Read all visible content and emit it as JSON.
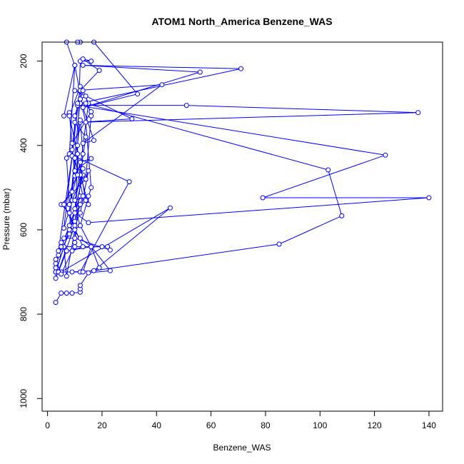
{
  "chart_data": {
    "type": "line",
    "title": "ATOM1 North_America Benzene_WAS",
    "xlabel": "Benzene_WAS",
    "ylabel": "Pressure (mbar)",
    "xlim": [
      -2,
      145
    ],
    "ylim": [
      1030,
      155
    ],
    "y_reversed": true,
    "grid": false,
    "x_ticks": [
      0,
      20,
      40,
      60,
      80,
      100,
      120,
      140
    ],
    "y_ticks": [
      200,
      400,
      600,
      800,
      1000
    ],
    "colors": {
      "series": "#0000ff",
      "axes": "#000000",
      "background": "#ffffff"
    },
    "markers": "open-circle",
    "series": [
      {
        "values": [
          [
            3,
            772
          ],
          [
            5,
            750
          ],
          [
            7,
            750
          ],
          [
            9,
            750
          ],
          [
            12,
            748
          ],
          [
            12,
            740
          ],
          [
            12,
            732
          ],
          [
            15,
            702
          ],
          [
            23,
            697
          ],
          [
            16,
            640
          ],
          [
            20,
            640
          ],
          [
            10,
            640
          ],
          [
            6,
            640
          ],
          [
            3,
            700
          ],
          [
            5,
            700
          ],
          [
            9,
            700
          ],
          [
            17,
            697
          ],
          [
            45,
            548
          ],
          [
            5,
            700
          ],
          [
            12,
            700
          ],
          [
            30,
            486
          ],
          [
            8,
            420
          ],
          [
            10,
            210
          ],
          [
            7,
            155
          ],
          [
            12,
            155
          ],
          [
            11,
            155
          ],
          [
            17,
            155
          ],
          [
            33,
            278
          ],
          [
            13,
            310
          ],
          [
            10,
            210
          ],
          [
            6,
            330
          ],
          [
            8,
            322
          ],
          [
            10,
            472
          ],
          [
            14,
            480
          ],
          [
            5,
            540
          ],
          [
            8,
            560
          ],
          [
            10,
            600
          ],
          [
            7,
            710
          ],
          [
            6,
            640
          ],
          [
            3,
            700
          ],
          [
            12,
            520
          ],
          [
            4,
            660
          ],
          [
            8,
            610
          ],
          [
            13,
            470
          ],
          [
            9,
            530
          ],
          [
            6,
            596
          ],
          [
            12,
            260
          ],
          [
            8,
            330
          ],
          [
            11,
            420
          ],
          [
            14,
            530
          ],
          [
            10,
            560
          ],
          [
            15,
            583
          ],
          [
            140,
            524
          ],
          [
            79,
            524
          ],
          [
            124,
            423
          ],
          [
            11,
            305
          ],
          [
            51,
            305
          ],
          [
            136,
            322
          ],
          [
            12,
            345
          ],
          [
            31,
            337
          ],
          [
            10,
            270
          ],
          [
            42,
            256
          ],
          [
            13,
            395
          ],
          [
            17,
            388
          ],
          [
            13,
            310
          ],
          [
            56,
            226
          ],
          [
            13,
            210
          ],
          [
            71,
            218
          ],
          [
            12,
            300
          ],
          [
            15,
            302
          ],
          [
            103,
            458
          ],
          [
            108,
            567
          ],
          [
            85,
            634
          ],
          [
            17,
            697
          ],
          [
            19,
            690
          ],
          [
            16,
            640
          ],
          [
            22,
            640
          ],
          [
            23,
            648
          ],
          [
            10,
            620
          ],
          [
            6,
            620
          ],
          [
            12,
            590
          ],
          [
            16,
            500
          ],
          [
            14,
            345
          ],
          [
            12,
            290
          ],
          [
            8,
            560
          ],
          [
            9,
            510
          ],
          [
            12,
            340
          ],
          [
            13,
            420
          ],
          [
            10,
            630
          ],
          [
            12,
            200
          ],
          [
            16,
            200
          ],
          [
            13,
            195
          ],
          [
            19,
            222
          ],
          [
            12,
            270
          ],
          [
            11,
            300
          ],
          [
            9,
            410
          ],
          [
            7,
            430
          ],
          [
            8,
            540
          ],
          [
            12,
            440
          ],
          [
            16,
            431
          ],
          [
            10,
            460
          ],
          [
            13,
            455
          ],
          [
            10,
            530
          ],
          [
            15,
            520
          ],
          [
            15,
            540
          ],
          [
            12,
            470
          ],
          [
            14,
            380
          ],
          [
            10,
            345
          ],
          [
            9,
            425
          ],
          [
            4,
            650
          ],
          [
            5,
            640
          ],
          [
            3,
            690
          ],
          [
            4,
            700
          ],
          [
            13,
            700
          ],
          [
            16,
            640
          ],
          [
            12,
            620
          ],
          [
            8,
            590
          ],
          [
            10,
            580
          ],
          [
            12,
            540
          ],
          [
            13,
            520
          ],
          [
            10,
            430
          ],
          [
            8,
            600
          ],
          [
            5,
            630
          ],
          [
            3,
            680
          ],
          [
            4,
            700
          ],
          [
            7,
            650
          ],
          [
            16,
            640
          ],
          [
            12,
            590
          ],
          [
            10,
            550
          ],
          [
            15,
            300
          ],
          [
            13,
            270
          ],
          [
            10,
            330
          ],
          [
            12,
            290
          ],
          [
            14,
            283
          ],
          [
            16,
            330
          ],
          [
            14,
            480
          ],
          [
            15,
            460
          ],
          [
            12,
            560
          ],
          [
            10,
            590
          ],
          [
            3,
            715
          ],
          [
            3,
            670
          ],
          [
            5,
            705
          ],
          [
            9,
            650
          ],
          [
            13,
            640
          ],
          [
            6,
            540
          ],
          [
            11,
            470
          ],
          [
            11,
            400
          ],
          [
            9,
            395
          ],
          [
            16,
            320
          ],
          [
            14,
            300
          ]
        ]
      }
    ]
  }
}
